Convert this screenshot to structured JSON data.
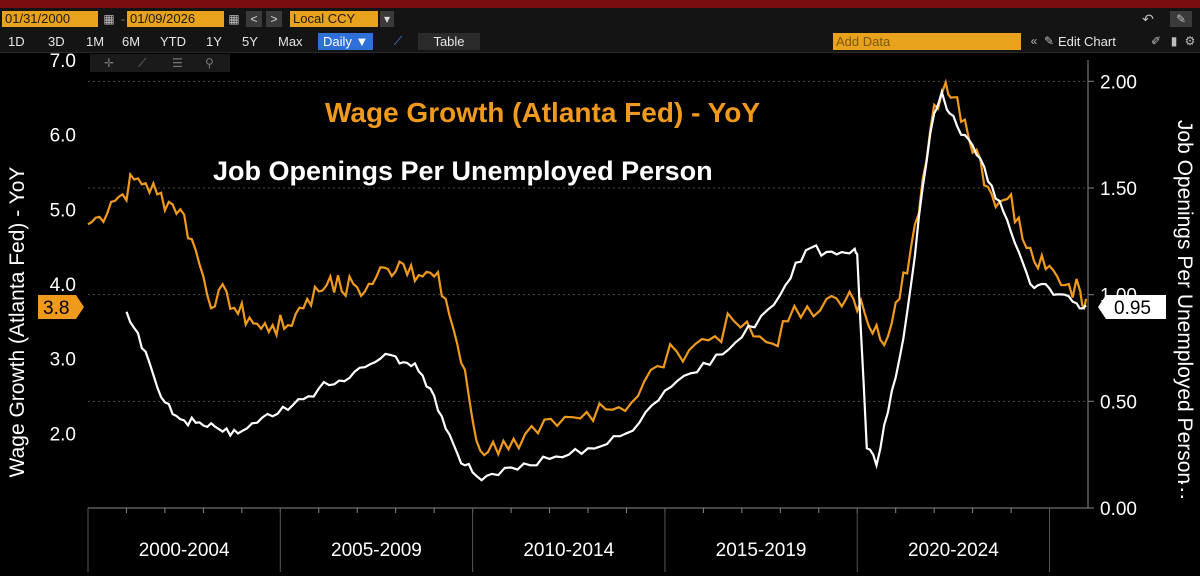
{
  "toolbar": {
    "start_date": "01/31/2000",
    "end_date": "01/09/2026",
    "currency": "Local CCY",
    "ranges": [
      "1D",
      "3D",
      "1M",
      "6M",
      "YTD",
      "1Y",
      "5Y",
      "Max"
    ],
    "frequency": "Daily ▼",
    "table_label": "Table",
    "add_data_placeholder": "Add Data",
    "edit_chart_label": "Edit Chart"
  },
  "colors": {
    "wage": "#ef9a1c",
    "jobs": "#ffffff",
    "grid": "#4a4a4a",
    "background": "#000000"
  },
  "chart_data": {
    "type": "line",
    "title": "Wage Growth (Atlanta Fed) - YoY",
    "subtitle": "Job Openings Per Unemployed Person",
    "x_tick_labels": [
      "2000-2004",
      "2005-2009",
      "2010-2014",
      "2015-2019",
      "2020-2024"
    ],
    "xlim": [
      2000.0,
      2026.0
    ],
    "left_axis": {
      "label": "Wage Growth (Atlanta Fed) - YoY",
      "ylim": [
        1.0,
        7.0
      ],
      "ticks": [
        "2.0",
        "3.0",
        "4.0",
        "5.0",
        "6.0",
        "7.0"
      ],
      "last_value": "3.8"
    },
    "right_axis": {
      "label": "Job Openings Per Unemployed Person",
      "ylim": [
        0.0,
        2.1
      ],
      "ticks": [
        "0.00",
        "0.50",
        "1.00",
        "1.50",
        "2.00"
      ],
      "last_value": "0.95"
    },
    "series": [
      {
        "name": "Wage Growth (Atlanta Fed) - YoY",
        "axis": "left",
        "points": [
          [
            2000.0,
            4.8
          ],
          [
            2000.3,
            4.9
          ],
          [
            2000.6,
            5.1
          ],
          [
            2000.9,
            5.2
          ],
          [
            2001.2,
            5.4
          ],
          [
            2001.5,
            5.35
          ],
          [
            2001.8,
            5.2
          ],
          [
            2002.1,
            5.1
          ],
          [
            2002.4,
            5.0
          ],
          [
            2002.7,
            4.6
          ],
          [
            2003.0,
            4.1
          ],
          [
            2003.3,
            3.7
          ],
          [
            2003.6,
            3.9
          ],
          [
            2003.9,
            3.6
          ],
          [
            2004.2,
            3.55
          ],
          [
            2004.5,
            3.4
          ],
          [
            2004.8,
            3.45
          ],
          [
            2005.1,
            3.4
          ],
          [
            2005.4,
            3.6
          ],
          [
            2005.7,
            3.8
          ],
          [
            2006.0,
            3.9
          ],
          [
            2006.3,
            4.1
          ],
          [
            2006.6,
            3.9
          ],
          [
            2006.9,
            4.0
          ],
          [
            2007.2,
            3.9
          ],
          [
            2007.5,
            4.1
          ],
          [
            2007.8,
            4.2
          ],
          [
            2008.1,
            4.3
          ],
          [
            2008.4,
            4.25
          ],
          [
            2008.7,
            4.1
          ],
          [
            2009.0,
            4.1
          ],
          [
            2009.3,
            3.8
          ],
          [
            2009.6,
            3.2
          ],
          [
            2009.9,
            2.5
          ],
          [
            2010.1,
            1.9
          ],
          [
            2010.4,
            1.75
          ],
          [
            2010.8,
            1.9
          ],
          [
            2011.2,
            1.8
          ],
          [
            2011.7,
            2.0
          ],
          [
            2012.2,
            2.1
          ],
          [
            2012.8,
            2.2
          ],
          [
            2013.3,
            2.4
          ],
          [
            2013.8,
            2.35
          ],
          [
            2014.3,
            2.5
          ],
          [
            2014.8,
            2.9
          ],
          [
            2015.3,
            3.1
          ],
          [
            2015.8,
            3.2
          ],
          [
            2016.3,
            3.3
          ],
          [
            2016.8,
            3.5
          ],
          [
            2017.3,
            3.3
          ],
          [
            2017.8,
            3.2
          ],
          [
            2018.2,
            3.5
          ],
          [
            2018.7,
            3.7
          ],
          [
            2019.2,
            3.8
          ],
          [
            2019.6,
            3.7
          ],
          [
            2019.9,
            3.8
          ],
          [
            2020.2,
            3.6
          ],
          [
            2020.5,
            3.45
          ],
          [
            2020.8,
            3.3
          ],
          [
            2021.1,
            3.8
          ],
          [
            2021.4,
            4.5
          ],
          [
            2021.7,
            5.4
          ],
          [
            2022.0,
            6.4
          ],
          [
            2022.3,
            6.7
          ],
          [
            2022.5,
            6.5
          ],
          [
            2022.8,
            6.2
          ],
          [
            2023.1,
            5.8
          ],
          [
            2023.4,
            5.3
          ],
          [
            2023.7,
            5.1
          ],
          [
            2024.0,
            5.2
          ],
          [
            2024.3,
            4.6
          ],
          [
            2024.6,
            4.3
          ],
          [
            2024.9,
            4.2
          ],
          [
            2025.2,
            4.1
          ],
          [
            2025.5,
            4.0
          ],
          [
            2025.8,
            3.9
          ],
          [
            2025.95,
            3.8
          ]
        ]
      },
      {
        "name": "Job Openings Per Unemployed Person",
        "axis": "right",
        "points": [
          [
            2001.0,
            0.92
          ],
          [
            2001.3,
            0.82
          ],
          [
            2001.6,
            0.68
          ],
          [
            2001.9,
            0.52
          ],
          [
            2002.2,
            0.44
          ],
          [
            2002.5,
            0.41
          ],
          [
            2002.8,
            0.4
          ],
          [
            2003.1,
            0.38
          ],
          [
            2003.4,
            0.37
          ],
          [
            2003.7,
            0.34
          ],
          [
            2004.0,
            0.36
          ],
          [
            2004.4,
            0.4
          ],
          [
            2004.8,
            0.43
          ],
          [
            2005.2,
            0.46
          ],
          [
            2005.6,
            0.51
          ],
          [
            2006.0,
            0.56
          ],
          [
            2006.4,
            0.58
          ],
          [
            2006.8,
            0.61
          ],
          [
            2007.2,
            0.66
          ],
          [
            2007.6,
            0.7
          ],
          [
            2008.0,
            0.71
          ],
          [
            2008.3,
            0.68
          ],
          [
            2008.6,
            0.64
          ],
          [
            2008.9,
            0.56
          ],
          [
            2009.2,
            0.43
          ],
          [
            2009.5,
            0.3
          ],
          [
            2009.8,
            0.2
          ],
          [
            2010.1,
            0.15
          ],
          [
            2010.5,
            0.16
          ],
          [
            2011.0,
            0.19
          ],
          [
            2011.5,
            0.2
          ],
          [
            2012.0,
            0.23
          ],
          [
            2012.5,
            0.25
          ],
          [
            2013.0,
            0.28
          ],
          [
            2013.5,
            0.3
          ],
          [
            2014.0,
            0.35
          ],
          [
            2014.5,
            0.45
          ],
          [
            2015.0,
            0.55
          ],
          [
            2015.5,
            0.62
          ],
          [
            2016.0,
            0.68
          ],
          [
            2016.5,
            0.72
          ],
          [
            2017.0,
            0.8
          ],
          [
            2017.5,
            0.9
          ],
          [
            2018.0,
            1.0
          ],
          [
            2018.4,
            1.15
          ],
          [
            2018.8,
            1.22
          ],
          [
            2019.2,
            1.2
          ],
          [
            2019.6,
            1.2
          ],
          [
            2019.9,
            1.21
          ],
          [
            2020.0,
            1.19
          ],
          [
            2020.25,
            0.28
          ],
          [
            2020.5,
            0.2
          ],
          [
            2020.8,
            0.45
          ],
          [
            2021.1,
            0.7
          ],
          [
            2021.4,
            1.05
          ],
          [
            2021.7,
            1.5
          ],
          [
            2022.0,
            1.85
          ],
          [
            2022.2,
            1.95
          ],
          [
            2022.4,
            1.85
          ],
          [
            2022.7,
            1.75
          ],
          [
            2023.0,
            1.7
          ],
          [
            2023.3,
            1.6
          ],
          [
            2023.6,
            1.45
          ],
          [
            2023.9,
            1.35
          ],
          [
            2024.2,
            1.2
          ],
          [
            2024.5,
            1.05
          ],
          [
            2024.8,
            1.05
          ],
          [
            2025.1,
            1.0
          ],
          [
            2025.4,
            1.0
          ],
          [
            2025.7,
            0.96
          ],
          [
            2025.95,
            0.95
          ]
        ]
      }
    ]
  }
}
